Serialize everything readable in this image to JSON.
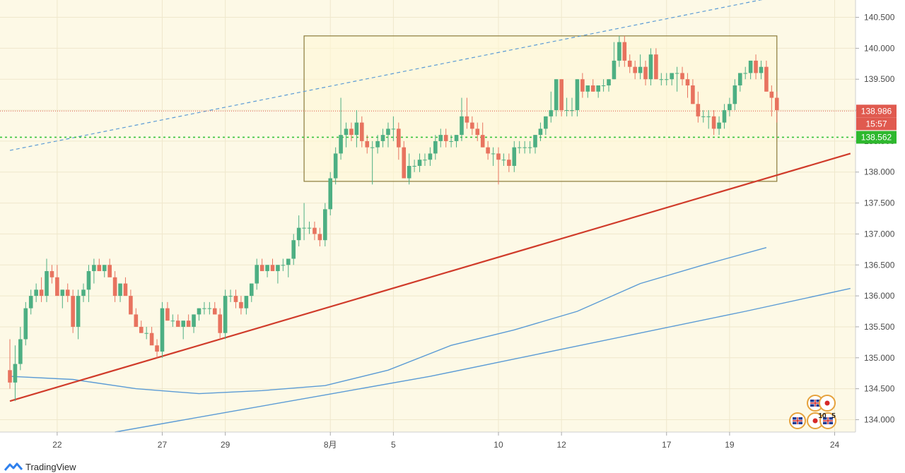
{
  "app": {
    "brand": "TradingView",
    "brand_icon": "tradingview-logo-icon",
    "background": "#fdf9e6",
    "axis_color": "#4a4a4a"
  },
  "chart_data": {
    "type": "candlestick",
    "title": "",
    "xlabel": "",
    "ylabel": "",
    "ylim": [
      133.8,
      140.78
    ],
    "yticks": [
      "140.500",
      "140.000",
      "139.500",
      "139.000",
      "138.500",
      "138.000",
      "137.500",
      "137.000",
      "136.500",
      "136.000",
      "135.500",
      "135.000",
      "134.500",
      "134.000"
    ],
    "xticks": [
      {
        "label": "22",
        "bar": 9
      },
      {
        "label": "27",
        "bar": 29
      },
      {
        "label": "29",
        "bar": 41
      },
      {
        "label": "8月",
        "bar": 61
      },
      {
        "label": "5",
        "bar": 73
      },
      {
        "label": "10",
        "bar": 93
      },
      {
        "label": "12",
        "bar": 105
      },
      {
        "label": "17",
        "bar": 125
      },
      {
        "label": "19",
        "bar": 137
      },
      {
        "label": "24",
        "bar": 157
      }
    ],
    "candles": [
      [
        134.8,
        134.5,
        135.3,
        134.6
      ],
      [
        134.6,
        134.3,
        135.2,
        134.9
      ],
      [
        134.9,
        134.8,
        135.5,
        135.3
      ],
      [
        135.3,
        135.2,
        135.9,
        135.8
      ],
      [
        135.8,
        135.7,
        136.1,
        136.0
      ],
      [
        136.0,
        135.9,
        136.2,
        136.1
      ],
      [
        136.1,
        135.9,
        136.3,
        136.0
      ],
      [
        136.0,
        135.9,
        136.6,
        136.4
      ],
      [
        136.4,
        136.2,
        136.5,
        136.3
      ],
      [
        136.3,
        136.1,
        136.5,
        136.0
      ],
      [
        136.0,
        135.8,
        136.1,
        136.1
      ],
      [
        136.1,
        135.9,
        136.2,
        136.0
      ],
      [
        136.0,
        135.4,
        136.1,
        135.5
      ],
      [
        135.5,
        135.3,
        136.1,
        136.0
      ],
      [
        136.0,
        135.9,
        136.2,
        136.1
      ],
      [
        136.1,
        135.9,
        136.5,
        136.4
      ],
      [
        136.4,
        136.2,
        136.6,
        136.5
      ],
      [
        136.5,
        136.4,
        136.6,
        136.4
      ],
      [
        136.4,
        136.3,
        136.5,
        136.5
      ],
      [
        136.5,
        136.4,
        136.6,
        136.3
      ],
      [
        136.3,
        135.9,
        136.4,
        136.0
      ],
      [
        136.0,
        135.9,
        136.2,
        136.2
      ],
      [
        136.2,
        136.1,
        136.3,
        136.0
      ],
      [
        136.0,
        135.9,
        136.1,
        135.7
      ],
      [
        135.7,
        135.5,
        135.8,
        135.5
      ],
      [
        135.5,
        135.4,
        135.6,
        135.4
      ],
      [
        135.4,
        135.3,
        135.5,
        135.4
      ],
      [
        135.4,
        135.3,
        135.5,
        135.2
      ],
      [
        135.2,
        135.0,
        135.3,
        135.1
      ],
      [
        135.1,
        135.0,
        135.9,
        135.8
      ],
      [
        135.8,
        135.6,
        135.9,
        135.6
      ],
      [
        135.6,
        135.5,
        135.7,
        135.6
      ],
      [
        135.6,
        135.5,
        135.7,
        135.5
      ],
      [
        135.5,
        135.3,
        135.6,
        135.6
      ],
      [
        135.6,
        135.5,
        135.7,
        135.5
      ],
      [
        135.5,
        135.4,
        135.7,
        135.7
      ],
      [
        135.7,
        135.6,
        135.8,
        135.8
      ],
      [
        135.8,
        135.7,
        135.9,
        135.8
      ],
      [
        135.8,
        135.7,
        135.9,
        135.8
      ],
      [
        135.8,
        135.7,
        135.9,
        135.7
      ],
      [
        135.7,
        135.3,
        135.8,
        135.4
      ],
      [
        135.4,
        135.3,
        136.1,
        136.0
      ],
      [
        136.0,
        135.9,
        136.1,
        136.0
      ],
      [
        136.0,
        135.8,
        136.1,
        135.9
      ],
      [
        135.9,
        135.7,
        136.0,
        135.8
      ],
      [
        135.8,
        135.7,
        136.0,
        136.0
      ],
      [
        136.0,
        135.9,
        136.2,
        136.2
      ],
      [
        136.2,
        136.1,
        136.6,
        136.5
      ],
      [
        136.5,
        136.4,
        136.6,
        136.4
      ],
      [
        136.4,
        136.3,
        136.5,
        136.5
      ],
      [
        136.5,
        136.4,
        136.6,
        136.4
      ],
      [
        136.4,
        136.2,
        136.5,
        136.5
      ],
      [
        136.5,
        136.4,
        136.6,
        136.5
      ],
      [
        136.5,
        136.3,
        136.6,
        136.6
      ],
      [
        136.6,
        136.5,
        137.0,
        136.9
      ],
      [
        136.9,
        136.8,
        137.3,
        137.1
      ],
      [
        137.1,
        136.9,
        137.5,
        137.1
      ],
      [
        137.1,
        137.0,
        137.2,
        137.1
      ],
      [
        137.1,
        136.9,
        137.2,
        137.0
      ],
      [
        137.0,
        136.8,
        137.1,
        136.9
      ],
      [
        136.9,
        136.8,
        137.5,
        137.4
      ],
      [
        137.4,
        137.3,
        138.0,
        137.9
      ],
      [
        137.9,
        137.8,
        138.4,
        138.3
      ],
      [
        138.3,
        138.2,
        139.2,
        138.6
      ],
      [
        138.6,
        138.4,
        138.8,
        138.7
      ],
      [
        138.7,
        138.5,
        138.8,
        138.6
      ],
      [
        138.6,
        138.4,
        139.0,
        138.8
      ],
      [
        138.8,
        138.4,
        138.9,
        138.5
      ],
      [
        138.5,
        138.3,
        138.6,
        138.4
      ],
      [
        138.4,
        137.8,
        138.5,
        138.4
      ],
      [
        138.4,
        138.3,
        138.6,
        138.5
      ],
      [
        138.5,
        138.4,
        138.7,
        138.6
      ],
      [
        138.6,
        138.4,
        138.8,
        138.7
      ],
      [
        138.7,
        138.5,
        138.9,
        138.7
      ],
      [
        138.7,
        138.2,
        138.8,
        138.4
      ],
      [
        138.4,
        137.9,
        138.5,
        137.9
      ],
      [
        137.9,
        137.8,
        138.3,
        138.1
      ],
      [
        138.1,
        138.0,
        138.2,
        138.1
      ],
      [
        138.1,
        138.0,
        138.3,
        138.2
      ],
      [
        138.2,
        138.1,
        138.3,
        138.2
      ],
      [
        138.2,
        138.1,
        138.4,
        138.3
      ],
      [
        138.3,
        138.2,
        138.6,
        138.5
      ],
      [
        138.5,
        138.4,
        138.7,
        138.6
      ],
      [
        138.6,
        138.4,
        138.7,
        138.5
      ],
      [
        138.5,
        138.4,
        138.6,
        138.5
      ],
      [
        138.5,
        138.4,
        138.6,
        138.6
      ],
      [
        138.6,
        138.5,
        139.2,
        138.9
      ],
      [
        138.9,
        138.7,
        139.2,
        138.8
      ],
      [
        138.8,
        138.6,
        138.9,
        138.7
      ],
      [
        138.7,
        138.5,
        138.8,
        138.6
      ],
      [
        138.6,
        138.4,
        138.8,
        138.4
      ],
      [
        138.4,
        138.2,
        138.5,
        138.3
      ],
      [
        138.3,
        138.1,
        138.4,
        138.3
      ],
      [
        138.3,
        137.8,
        138.4,
        138.2
      ],
      [
        138.2,
        138.1,
        138.3,
        138.2
      ],
      [
        138.2,
        138.0,
        138.3,
        138.1
      ],
      [
        138.1,
        138.0,
        138.5,
        138.4
      ],
      [
        138.4,
        138.3,
        138.5,
        138.4
      ],
      [
        138.4,
        138.3,
        138.5,
        138.4
      ],
      [
        138.4,
        138.3,
        138.5,
        138.4
      ],
      [
        138.4,
        138.3,
        138.6,
        138.6
      ],
      [
        138.6,
        138.5,
        138.8,
        138.7
      ],
      [
        138.7,
        138.6,
        138.9,
        138.9
      ],
      [
        138.9,
        138.8,
        139.3,
        139.0
      ],
      [
        139.0,
        138.9,
        139.5,
        139.5
      ],
      [
        139.5,
        138.9,
        139.5,
        139.0
      ],
      [
        139.0,
        138.9,
        139.2,
        139.0
      ],
      [
        139.0,
        138.9,
        139.2,
        139.0
      ],
      [
        139.0,
        138.9,
        139.5,
        139.5
      ],
      [
        139.5,
        139.2,
        139.6,
        139.3
      ],
      [
        139.3,
        139.2,
        139.4,
        139.4
      ],
      [
        139.4,
        139.3,
        139.5,
        139.3
      ],
      [
        139.3,
        139.2,
        139.4,
        139.4
      ],
      [
        139.4,
        139.3,
        139.5,
        139.4
      ],
      [
        139.4,
        139.3,
        139.5,
        139.5
      ],
      [
        139.5,
        139.5,
        140.1,
        139.8
      ],
      [
        139.8,
        139.7,
        140.2,
        140.1
      ],
      [
        140.1,
        139.7,
        140.2,
        139.8
      ],
      [
        139.8,
        139.6,
        139.9,
        139.7
      ],
      [
        139.7,
        139.5,
        139.8,
        139.6
      ],
      [
        139.6,
        139.5,
        139.9,
        139.7
      ],
      [
        139.7,
        139.4,
        139.8,
        139.5
      ],
      [
        139.5,
        139.4,
        140.0,
        139.9
      ],
      [
        139.9,
        139.5,
        140.0,
        139.5
      ],
      [
        139.5,
        139.4,
        139.6,
        139.5
      ],
      [
        139.5,
        139.4,
        139.6,
        139.5
      ],
      [
        139.5,
        139.4,
        139.6,
        139.6
      ],
      [
        139.6,
        139.3,
        139.7,
        139.6
      ],
      [
        139.6,
        139.4,
        139.7,
        139.5
      ],
      [
        139.5,
        139.2,
        139.6,
        139.4
      ],
      [
        139.4,
        139.1,
        139.5,
        139.1
      ],
      [
        139.1,
        138.8,
        139.3,
        138.9
      ],
      [
        138.9,
        138.8,
        139.0,
        138.9
      ],
      [
        138.9,
        138.7,
        139.0,
        138.9
      ],
      [
        138.9,
        138.6,
        139.0,
        138.7
      ],
      [
        138.7,
        138.6,
        138.9,
        138.8
      ],
      [
        138.8,
        138.7,
        139.1,
        139.0
      ],
      [
        139.0,
        138.9,
        139.2,
        139.1
      ],
      [
        139.1,
        139.0,
        139.5,
        139.4
      ],
      [
        139.4,
        139.3,
        139.6,
        139.6
      ],
      [
        139.6,
        139.5,
        139.7,
        139.6
      ],
      [
        139.6,
        139.5,
        139.8,
        139.8
      ],
      [
        139.8,
        139.5,
        139.9,
        139.6
      ],
      [
        139.6,
        139.5,
        139.8,
        139.7
      ],
      [
        139.7,
        139.3,
        139.8,
        139.3
      ],
      [
        139.3,
        138.9,
        139.4,
        139.2
      ],
      [
        139.2,
        138.8,
        139.3,
        139.0
      ]
    ],
    "moving_averages": [
      {
        "color": "#5b9bd5",
        "points": [
          [
            0,
            134.7
          ],
          [
            12,
            134.65
          ],
          [
            24,
            134.5
          ],
          [
            36,
            134.42
          ],
          [
            48,
            134.47
          ],
          [
            60,
            134.55
          ],
          [
            72,
            134.8
          ],
          [
            84,
            135.2
          ],
          [
            96,
            135.45
          ],
          [
            108,
            135.75
          ],
          [
            120,
            136.2
          ],
          [
            132,
            136.5
          ],
          [
            144,
            136.78
          ]
        ]
      },
      {
        "color": "#5b9bd5",
        "points": [
          [
            20,
            133.8
          ],
          [
            40,
            134.1
          ],
          [
            60,
            134.4
          ],
          [
            80,
            134.7
          ],
          [
            100,
            135.05
          ],
          [
            120,
            135.4
          ],
          [
            140,
            135.75
          ],
          [
            160,
            136.12
          ]
        ]
      }
    ],
    "trendlines": [
      {
        "color": "#d03b2a",
        "style": "solid",
        "from": [
          0,
          134.3
        ],
        "to": [
          160,
          138.3
        ]
      },
      {
        "color": "#5b9bd5",
        "style": "dashed",
        "from": [
          0,
          138.35
        ],
        "to": [
          144,
          140.8
        ]
      }
    ],
    "range_box": {
      "bar_start": 56,
      "bar_end": 146,
      "price_top": 140.2,
      "price_bottom": 137.85,
      "color": "#8a7a3a"
    },
    "horizontal_lines": [
      {
        "price": 138.986,
        "color": "#e05a4f",
        "style": "dotted"
      },
      {
        "price": 138.562,
        "color": "#35c33a",
        "style": "dotted"
      }
    ],
    "price_tags": [
      {
        "label": "138.986",
        "price": 138.986,
        "color": "#e05a4f"
      },
      {
        "label": "15:57",
        "price": 138.78,
        "color": "#e05a4f"
      },
      {
        "label": "138.562",
        "price": 138.562,
        "color": "#2eb82e",
        "text_color": "#111111"
      }
    ],
    "up_color": "#4daf83",
    "down_color": "#e8735f",
    "event_markers": [
      {
        "icon": "uk-flag-icon"
      },
      {
        "icon": "japan-flag-icon"
      },
      {
        "label": "10"
      },
      {
        "label": "5"
      }
    ]
  }
}
